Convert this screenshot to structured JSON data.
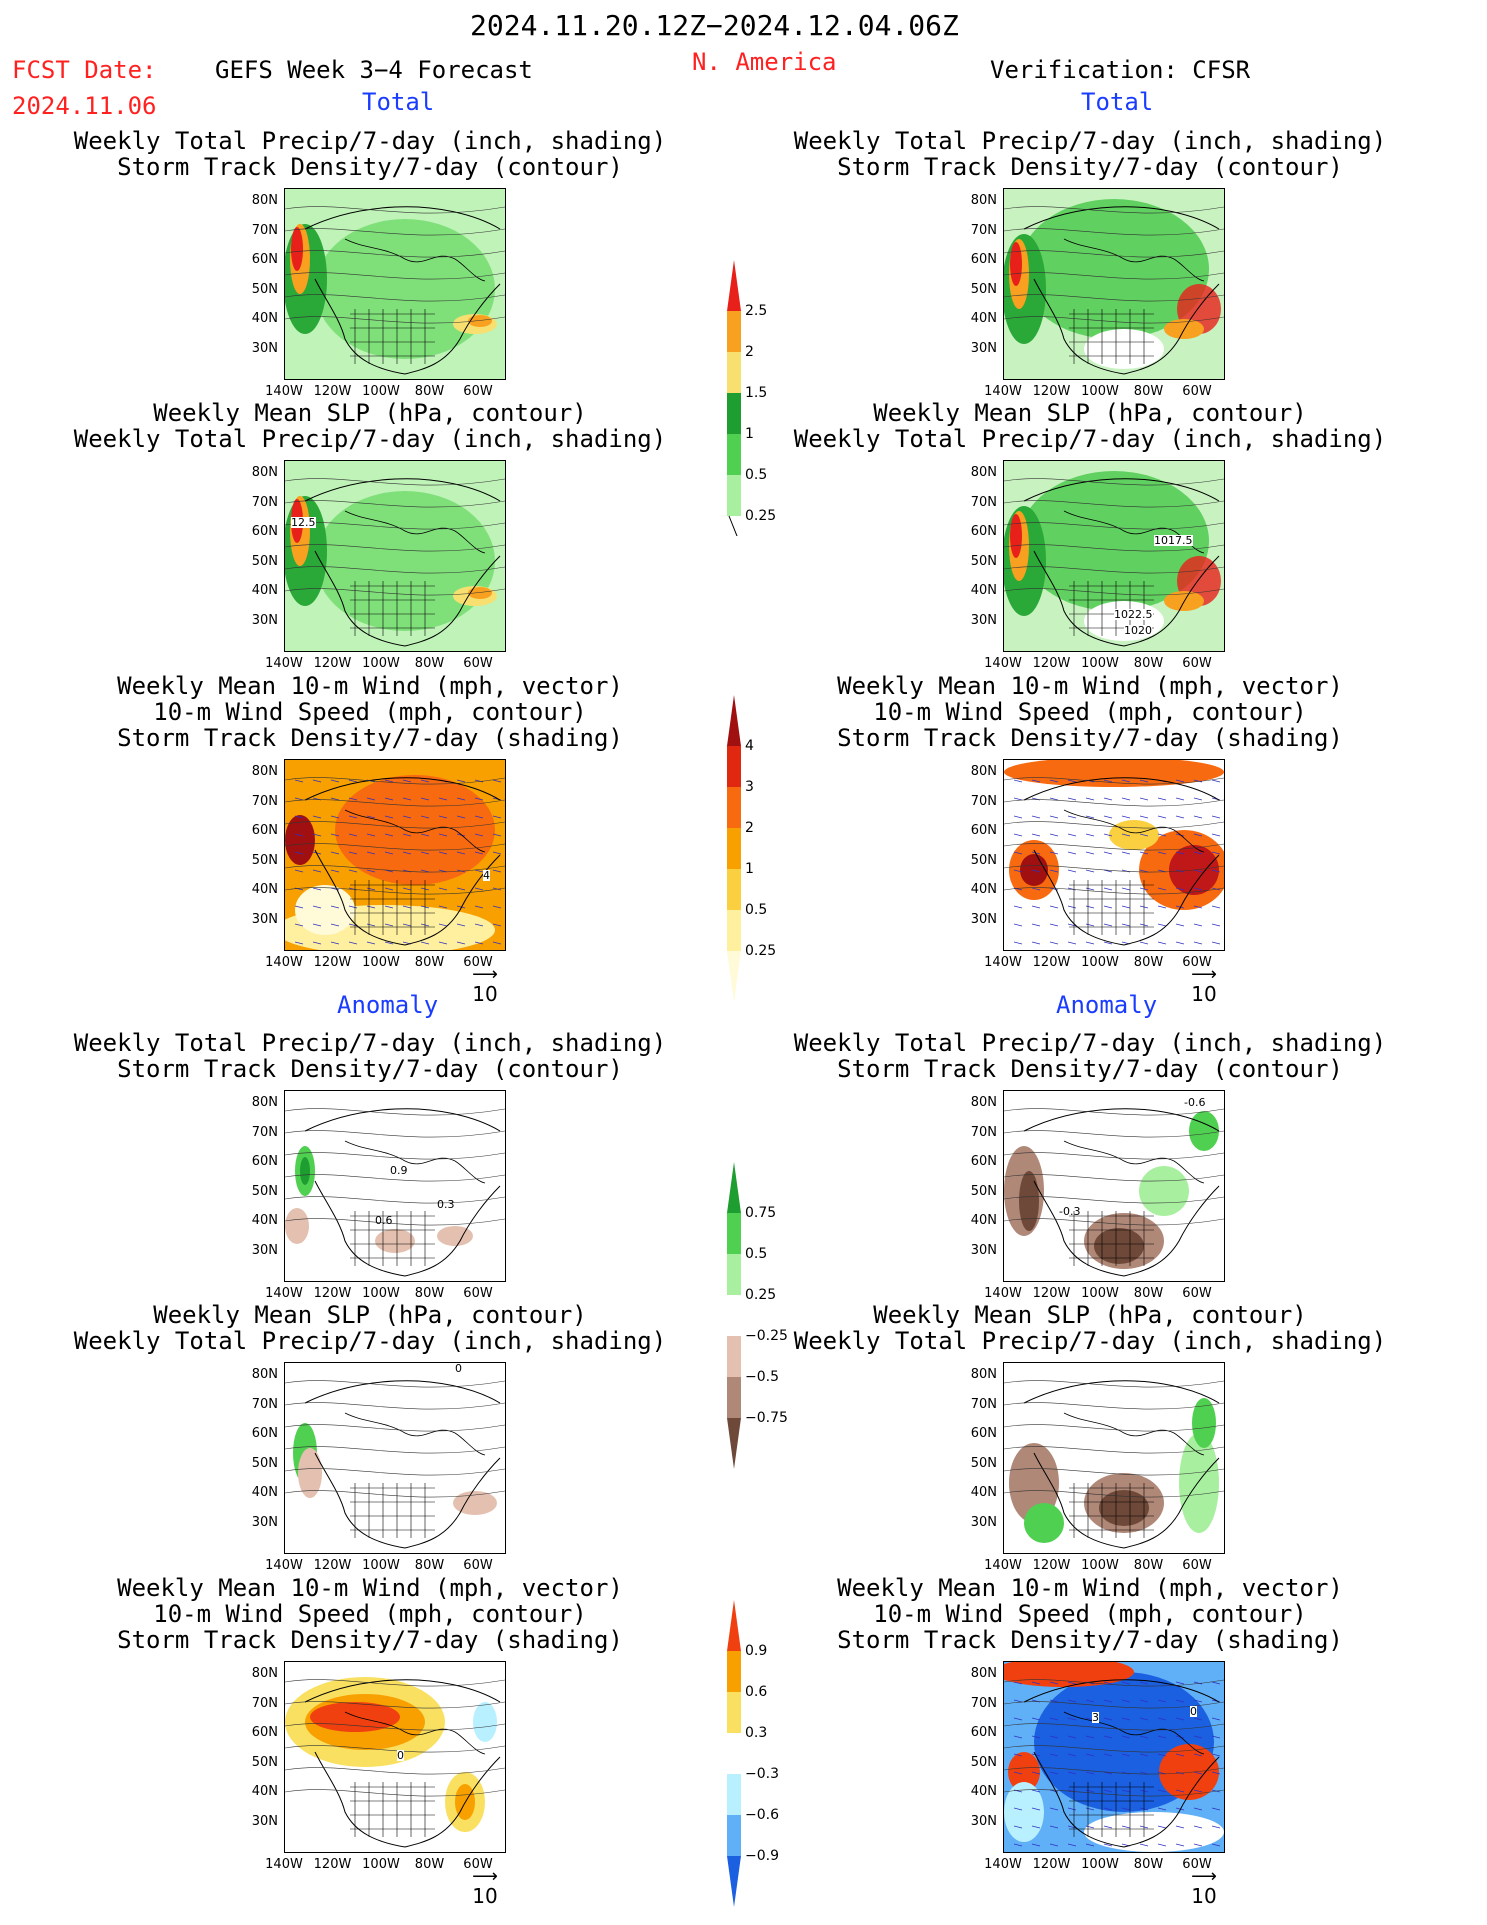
{
  "header": {
    "date_range": "2024.11.20.12Z−2024.12.04.06Z",
    "fcst_label": "FCST Date:",
    "fcst_date": "2024.11.06",
    "forecast_title": "GEFS Week 3−4 Forecast",
    "region": "N. America",
    "verification": "Verification: CFSR"
  },
  "sections": {
    "total_left": "Total",
    "total_right": "Total",
    "anomaly_left": "Anomaly",
    "anomaly_right": "Anomaly"
  },
  "panel_titles": {
    "precip_storm": "Weekly Total Precip/7-day (inch, shading)\nStorm Track Density/7-day (contour)",
    "slp_precip": "Weekly Mean SLP (hPa, contour)\nWeekly Total Precip/7-day (inch, shading)",
    "wind_storm": "Weekly Mean 10-m Wind (mph, vector)\n10-m Wind Speed (mph, contour)\nStorm Track Density/7-day (shading)"
  },
  "map_labels": {
    "lats": [
      "80N",
      "70N",
      "60N",
      "50N",
      "40N",
      "30N"
    ],
    "lons": [
      "140W",
      "120W",
      "100W",
      "80W",
      "60W"
    ]
  },
  "contour_labels": {
    "slp_left_total": "12.5",
    "slp_right_total_a": "1017.5",
    "slp_right_total_b": "1022.5",
    "slp_right_total_c": "1020",
    "wind_left_total": "4",
    "anom_left_a": "0.9",
    "anom_left_b": "0.6",
    "anom_left_c": "0.3",
    "anom_right_a": "-0.6",
    "anom_right_b": "-0.3",
    "anom_slp_left": "0",
    "anom_wind_left": "0",
    "anom_wind_right_a": "3",
    "anom_wind_right_b": "0"
  },
  "vector_ref": "10",
  "colorbars": {
    "precip_total": {
      "labels": [
        "2.5",
        "2",
        "1.5",
        "1",
        "0.5",
        "0.25"
      ],
      "colors": [
        "#e8201a",
        "#f8a020",
        "#f8e070",
        "#1e9e30",
        "#50d050",
        "#a8f0a0"
      ]
    },
    "storm_total": {
      "labels": [
        "4",
        "3",
        "2",
        "1",
        "0.5",
        "0.25"
      ],
      "colors": [
        "#a01010",
        "#e02810",
        "#f86a10",
        "#f8a000",
        "#fad040",
        "#fff0a0",
        "#fffad8"
      ]
    },
    "precip_anom": {
      "labels": [
        "0.75",
        "0.5",
        "0.25",
        "−0.25",
        "−0.5",
        "−0.75"
      ],
      "colors": [
        "#1e9e30",
        "#50d050",
        "#a8f0a0",
        "#ffffff",
        "#e4c0b0",
        "#b08878",
        "#6e4838"
      ]
    },
    "wind_anom": {
      "labels": [
        "0.9",
        "0.6",
        "0.3",
        "−0.3",
        "−0.6",
        "−0.9"
      ],
      "colors": [
        "#f04010",
        "#f8a000",
        "#fae060",
        "#ffffff",
        "#b8f0ff",
        "#60b0f8",
        "#1a60e0"
      ]
    }
  }
}
